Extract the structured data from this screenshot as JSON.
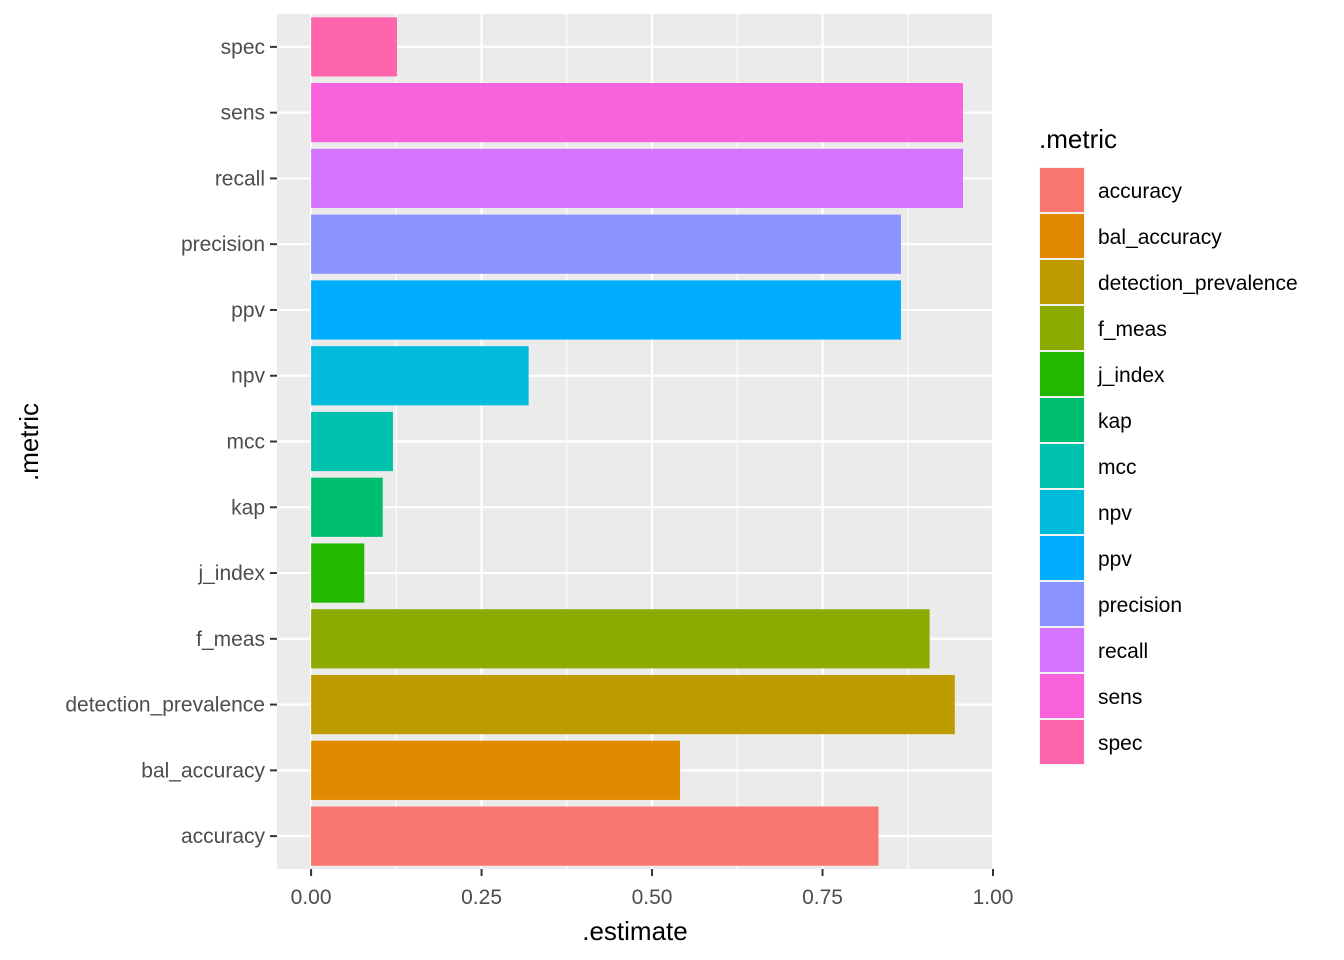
{
  "chart_data": {
    "type": "bar",
    "orientation": "horizontal",
    "xlabel": ".estimate",
    "ylabel": ".metric",
    "xlim": [
      -0.05,
      1.0
    ],
    "xticks": [
      0.0,
      0.25,
      0.5,
      0.75,
      1.0
    ],
    "xtick_labels": [
      "0.00",
      "0.25",
      "0.50",
      "0.75",
      "1.00"
    ],
    "grid": true,
    "categories": [
      "accuracy",
      "bal_accuracy",
      "detection_prevalence",
      "f_meas",
      "j_index",
      "kap",
      "mcc",
      "npv",
      "ppv",
      "precision",
      "recall",
      "sens",
      "spec"
    ],
    "values": [
      0.832,
      0.541,
      0.944,
      0.907,
      0.078,
      0.105,
      0.12,
      0.319,
      0.865,
      0.865,
      0.956,
      0.956,
      0.126
    ],
    "colors": [
      "#F8766D",
      "#E18A00",
      "#BE9C00",
      "#8CAB00",
      "#24B700",
      "#00BE70",
      "#00C1AB",
      "#00BBDA",
      "#00ACFC",
      "#8B93FF",
      "#D575FE",
      "#F962DD",
      "#FF65AC"
    ],
    "legend": {
      "title": ".metric",
      "position": "right",
      "entries": [
        "accuracy",
        "bal_accuracy",
        "detection_prevalence",
        "f_meas",
        "j_index",
        "kap",
        "mcc",
        "npv",
        "ppv",
        "precision",
        "recall",
        "sens",
        "spec"
      ]
    }
  }
}
